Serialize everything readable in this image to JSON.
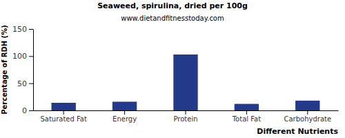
{
  "chart_data": {
    "type": "bar",
    "title": "Seaweed, spirulina, dried per 100g",
    "subtitle": "www.dietandfitnesstoday.com",
    "x_label": "Different Nutrients",
    "y_label": "Percentage of RDH (%)",
    "categories": [
      "Saturated Fat",
      "Energy",
      "Protein",
      "Total Fat",
      "Carbohydrate"
    ],
    "values": [
      14,
      16,
      103,
      12,
      18
    ],
    "color": "#233a8b",
    "ylim": [
      0,
      150
    ],
    "yticks": [
      0,
      50,
      100,
      150
    ],
    "grid": false
  }
}
